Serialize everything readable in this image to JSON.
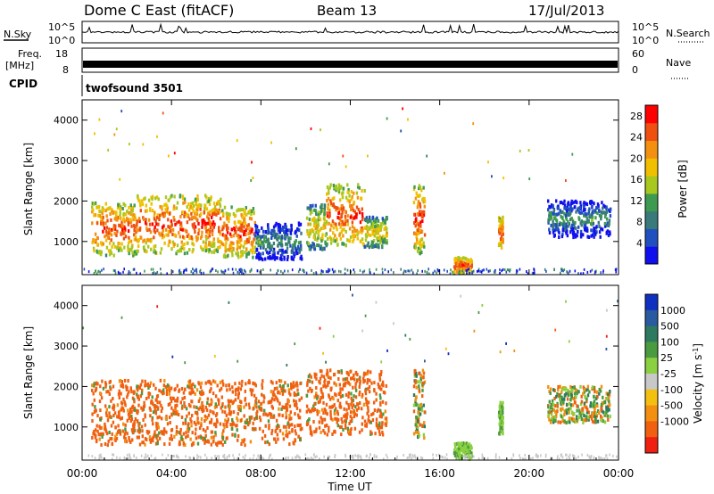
{
  "header": {
    "title": "Dome C East (fitACF)",
    "beam": "Beam 13",
    "date": "17/Jul/2013"
  },
  "panels": {
    "nsky": {
      "label": "N.Sky",
      "right_label": "N.Search",
      "left_ticks": [
        "10^5",
        "10^0"
      ],
      "right_ticks": [
        "10^5",
        "10^0"
      ]
    },
    "freq": {
      "label_line1": "Freq.",
      "label_line2": "[MHz]",
      "right_label": "Nave",
      "left_ticks": [
        "18",
        "8"
      ],
      "right_ticks": [
        "60",
        "0"
      ]
    },
    "cpid": {
      "label": "CPID",
      "text": "twofsound 3501"
    }
  },
  "time_axis": {
    "label": "Time UT",
    "ticks": [
      "00:00",
      "04:00",
      "08:00",
      "12:00",
      "16:00",
      "20:00",
      "00:00"
    ]
  },
  "range_axis": {
    "label": "Slant Range [km]",
    "ticks": [
      "1000",
      "2000",
      "3000",
      "4000"
    ]
  },
  "colorbars": {
    "power": {
      "label": "Power [dB]",
      "ticks": [
        "4",
        "8",
        "12",
        "16",
        "20",
        "24",
        "28"
      ],
      "colors": [
        "#1010ee",
        "#2050c0",
        "#3a7a7a",
        "#3e9a50",
        "#a8c820",
        "#f0c000",
        "#f49010",
        "#ef5010",
        "#ff0000"
      ]
    },
    "velocity": {
      "label": "Velocity [m s",
      "label_sup": "-1",
      "label_end": "]",
      "ticks": [
        "1000",
        "500",
        "100",
        "25",
        "-25",
        "-100",
        "-500",
        "-1000"
      ],
      "colors": [
        "#1030c0",
        "#2a5aa0",
        "#2e7a60",
        "#4a9a40",
        "#8ad040",
        "#c8c8c8",
        "#f4c010",
        "#f49010",
        "#f06010",
        "#f02010"
      ]
    }
  },
  "chart_data": [
    {
      "type": "heatmap",
      "name": "power",
      "xlabel": "Time UT",
      "ylabel": "Slant Range [km]",
      "xlim": [
        0,
        24
      ],
      "ylim": [
        180,
        4500
      ],
      "colorbar_label": "Power [dB]",
      "colorbar_range": [
        0,
        30
      ],
      "echo_regions": [
        {
          "t": [
            0.4,
            2.4
          ],
          "r": [
            650,
            1950
          ],
          "level": "high"
        },
        {
          "t": [
            2.4,
            6.2
          ],
          "r": [
            700,
            2150
          ],
          "level": "high"
        },
        {
          "t": [
            6.2,
            7.7
          ],
          "r": [
            600,
            1850
          ],
          "level": "high"
        },
        {
          "t": [
            7.7,
            9.8
          ],
          "r": [
            550,
            1450
          ],
          "level": "low"
        },
        {
          "t": [
            10.0,
            10.9
          ],
          "r": [
            800,
            1900
          ],
          "level": "medium"
        },
        {
          "t": [
            10.9,
            12.6
          ],
          "r": [
            900,
            2400
          ],
          "level": "high"
        },
        {
          "t": [
            12.6,
            13.6
          ],
          "r": [
            850,
            1600
          ],
          "level": "medium"
        },
        {
          "t": [
            14.8,
            15.3
          ],
          "r": [
            700,
            2400
          ],
          "level": "high"
        },
        {
          "t": [
            16.6,
            17.4
          ],
          "r": [
            200,
            600
          ],
          "level": "high"
        },
        {
          "t": [
            18.6,
            18.8
          ],
          "r": [
            800,
            1600
          ],
          "level": "high"
        },
        {
          "t": [
            20.8,
            23.6
          ],
          "r": [
            1100,
            2000
          ],
          "level": "low"
        }
      ]
    },
    {
      "type": "heatmap",
      "name": "velocity",
      "xlabel": "Time UT",
      "ylabel": "Slant Range [km]",
      "xlim": [
        0,
        24
      ],
      "ylim": [
        180,
        4500
      ],
      "colorbar_label": "Velocity [m s-1]",
      "colorbar_range": [
        -1000,
        1000
      ],
      "echo_regions": [
        {
          "t": [
            0.4,
            9.8
          ],
          "r": [
            550,
            2150
          ],
          "sign": "negative"
        },
        {
          "t": [
            10.0,
            13.6
          ],
          "r": [
            800,
            2400
          ],
          "sign": "negative"
        },
        {
          "t": [
            14.8,
            15.3
          ],
          "r": [
            700,
            2400
          ],
          "sign": "mixed"
        },
        {
          "t": [
            16.6,
            17.4
          ],
          "r": [
            200,
            600
          ],
          "sign": "positive"
        },
        {
          "t": [
            18.6,
            18.8
          ],
          "r": [
            800,
            1600
          ],
          "sign": "positive"
        },
        {
          "t": [
            20.8,
            23.6
          ],
          "r": [
            1100,
            2000
          ],
          "sign": "mixed"
        }
      ]
    }
  ]
}
